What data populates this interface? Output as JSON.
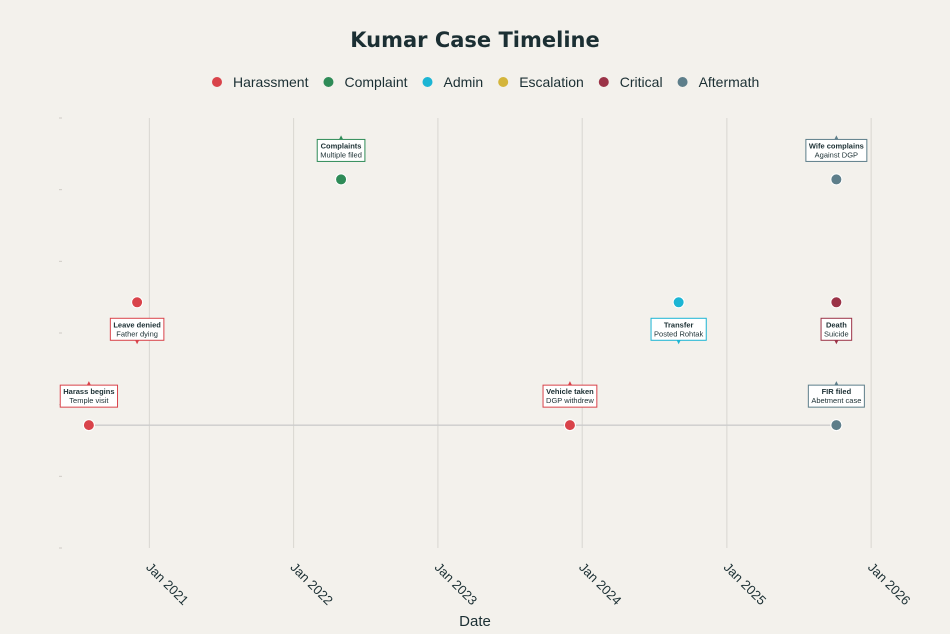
{
  "chart_data": {
    "type": "scatter",
    "title": "Kumar Case Timeline",
    "xlabel": "Date",
    "ylabel": "",
    "x_ticks": [
      "Jan 2021",
      "Jan 2022",
      "Jan 2023",
      "Jan 2024",
      "Jan 2025",
      "Jan 2026"
    ],
    "x_range": [
      "2020-05-25",
      "2026-03-15"
    ],
    "y_range": [
      -1,
      2.5
    ],
    "grid": "vertical",
    "legend_position": "top",
    "colors": {
      "Harassment": "#d9434a",
      "Complaint": "#2e8b57",
      "Admin": "#1cb5d4",
      "Escalation": "#d4b53b",
      "Critical": "#9b3347",
      "Aftermath": "#5d7e8a"
    },
    "legend": [
      "Harassment",
      "Complaint",
      "Admin",
      "Escalation",
      "Critical",
      "Aftermath"
    ],
    "timeline_line": {
      "from": "2020-08-01",
      "to": "2025-10-05",
      "y": 0
    },
    "events": [
      {
        "date": "2020-08-01",
        "y": 0,
        "category": "Harassment",
        "title": "Harass begins",
        "subtitle": "Temple visit",
        "label_side": "above"
      },
      {
        "date": "2020-12-01",
        "y": 1,
        "category": "Harassment",
        "title": "Leave denied",
        "subtitle": "Father dying",
        "label_side": "below"
      },
      {
        "date": "2022-05-01",
        "y": 2,
        "category": "Complaint",
        "title": "Complaints",
        "subtitle": "Multiple filed",
        "label_side": "above"
      },
      {
        "date": "2023-12-01",
        "y": 0,
        "category": "Harassment",
        "title": "Vehicle taken",
        "subtitle": "DGP withdrew",
        "label_side": "above"
      },
      {
        "date": "2024-09-01",
        "y": 1,
        "category": "Admin",
        "title": "Transfer",
        "subtitle": "Posted Rohtak",
        "label_side": "below"
      },
      {
        "date": "2025-10-05",
        "y": 1,
        "category": "Critical",
        "title": "Death",
        "subtitle": "Suicide",
        "label_side": "below"
      },
      {
        "date": "2025-10-05",
        "y": 0,
        "category": "Aftermath",
        "title": "FIR filed",
        "subtitle": "Abetment case",
        "label_side": "above"
      },
      {
        "date": "2025-10-05",
        "y": 2,
        "category": "Aftermath",
        "title": "Wife complains",
        "subtitle": "Against DGP",
        "label_side": "above"
      }
    ]
  }
}
